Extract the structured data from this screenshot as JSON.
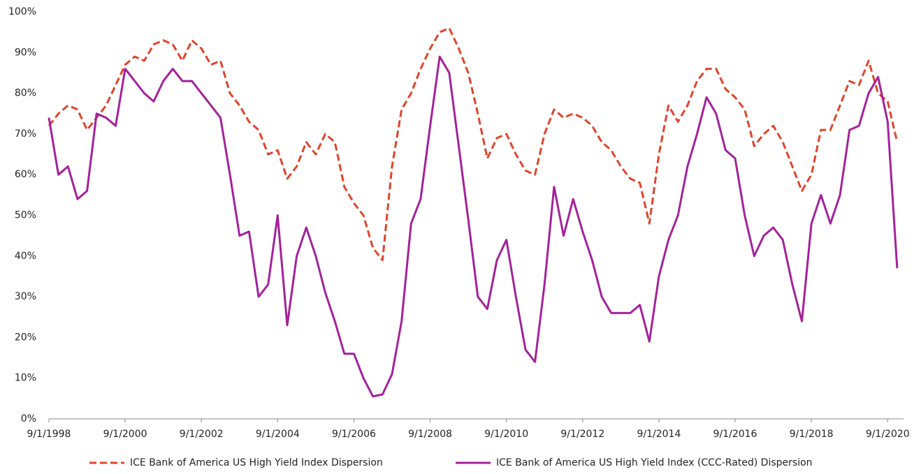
{
  "chart_data": {
    "type": "line",
    "x": [
      "9/1/1998",
      "12/1/1998",
      "3/1/1999",
      "6/1/1999",
      "9/1/1999",
      "12/1/1999",
      "3/1/2000",
      "6/1/2000",
      "9/1/2000",
      "12/1/2000",
      "3/1/2001",
      "6/1/2001",
      "9/1/2001",
      "12/1/2001",
      "3/1/2002",
      "6/1/2002",
      "9/1/2002",
      "12/1/2002",
      "3/1/2003",
      "6/1/2003",
      "9/1/2003",
      "12/1/2003",
      "3/1/2004",
      "6/1/2004",
      "9/1/2004",
      "12/1/2004",
      "3/1/2005",
      "6/1/2005",
      "9/1/2005",
      "12/1/2005",
      "3/1/2006",
      "6/1/2006",
      "9/1/2006",
      "12/1/2006",
      "3/1/2007",
      "6/1/2007",
      "9/1/2007",
      "12/1/2007",
      "3/1/2008",
      "6/1/2008",
      "9/1/2008",
      "12/1/2008",
      "3/1/2009",
      "6/1/2009",
      "9/1/2009",
      "12/1/2009",
      "3/1/2010",
      "6/1/2010",
      "9/1/2010",
      "12/1/2010",
      "3/1/2011",
      "6/1/2011",
      "9/1/2011",
      "12/1/2011",
      "3/1/2012",
      "6/1/2012",
      "9/1/2012",
      "12/1/2012",
      "3/1/2013",
      "6/1/2013",
      "9/1/2013",
      "12/1/2013",
      "3/1/2014",
      "6/1/2014",
      "9/1/2014",
      "12/1/2014",
      "3/1/2015",
      "6/1/2015",
      "9/1/2015",
      "12/1/2015",
      "3/1/2016",
      "6/1/2016",
      "9/1/2016",
      "12/1/2016",
      "3/1/2017",
      "6/1/2017",
      "9/1/2017",
      "12/1/2017",
      "3/1/2018",
      "6/1/2018",
      "9/1/2018",
      "12/1/2018",
      "3/1/2019",
      "6/1/2019",
      "9/1/2019",
      "12/1/2019",
      "3/1/2020",
      "6/1/2020",
      "9/1/2020",
      "12/1/2020"
    ],
    "series": [
      {
        "name": "ICE Bank of America US High Yield Index Dispersion",
        "color": "#e0442a",
        "style": "dashed",
        "values": [
          72,
          75,
          77,
          76,
          71,
          74,
          77,
          82,
          87,
          89,
          88,
          92,
          93,
          92,
          88,
          93,
          91,
          87,
          88,
          80,
          77,
          73,
          71,
          65,
          66,
          59,
          62,
          68,
          65,
          70,
          68,
          57,
          53,
          50,
          42,
          39,
          62,
          76,
          80,
          86,
          91,
          95,
          96,
          91,
          85,
          75,
          64,
          69,
          70,
          65,
          61,
          60,
          70,
          76,
          74,
          75,
          74,
          72,
          68,
          66,
          62,
          59,
          58,
          48,
          65,
          77,
          73,
          77,
          83,
          86,
          86,
          81,
          79,
          76,
          67,
          70,
          72,
          68,
          62,
          56,
          60,
          71,
          71,
          77,
          83,
          82,
          88,
          80,
          78,
          68
        ]
      },
      {
        "name": "ICE Bank of America US High Yield Index (CCC-Rated) Dispersion",
        "color": "#a3229a",
        "style": "solid",
        "values": [
          74,
          60,
          62,
          54,
          56,
          75,
          74,
          72,
          86,
          83,
          80,
          78,
          83,
          86,
          83,
          83,
          80,
          77,
          74,
          60,
          45,
          46,
          30,
          33,
          50,
          23,
          40,
          47,
          40,
          31,
          24,
          16,
          16,
          10,
          5.5,
          6,
          11,
          24,
          48,
          54,
          72,
          89,
          85,
          67,
          49,
          30,
          27,
          39,
          44,
          30,
          17,
          14,
          33,
          57,
          45,
          54,
          46,
          39,
          30,
          26,
          26,
          26,
          28,
          19,
          35,
          44,
          50,
          62,
          70,
          79,
          75,
          66,
          64,
          50,
          40,
          45,
          47,
          44,
          33,
          24,
          48,
          55,
          48,
          55,
          71,
          72,
          80,
          84,
          73,
          37
        ]
      }
    ],
    "xlim": [
      "9/1/1998",
      "2/1/2021"
    ],
    "xticks": [
      "9/1/1998",
      "9/1/2000",
      "9/1/2002",
      "9/1/2004",
      "9/1/2006",
      "9/1/2008",
      "9/1/2010",
      "9/1/2012",
      "9/1/2014",
      "9/1/2016",
      "9/1/2018",
      "9/1/2020"
    ],
    "ylim": [
      0,
      100
    ],
    "yticks": [
      {
        "value": 0,
        "label": "0%"
      },
      {
        "value": 10,
        "label": "10%"
      },
      {
        "value": 20,
        "label": "20%"
      },
      {
        "value": 30,
        "label": "30%"
      },
      {
        "value": 40,
        "label": "40%"
      },
      {
        "value": 50,
        "label": "50%"
      },
      {
        "value": 60,
        "label": "60%"
      },
      {
        "value": 70,
        "label": "70%"
      },
      {
        "value": 80,
        "label": "80%"
      },
      {
        "value": 90,
        "label": "90%"
      },
      {
        "value": 100,
        "label": "100%"
      }
    ],
    "grid": false,
    "legend": "bottom"
  }
}
